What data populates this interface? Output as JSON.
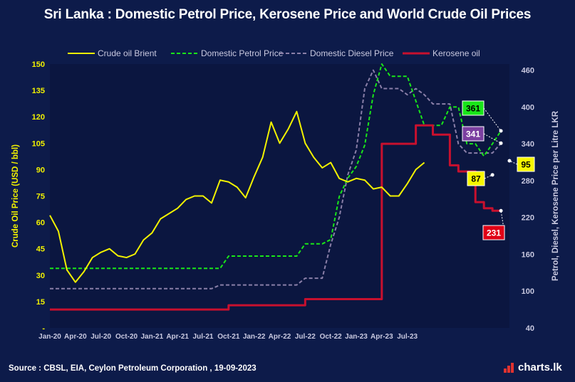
{
  "title": "Sri Lanka : Domestic Petrol Price, Kerosene Price and World Crude Oil Prices",
  "source": "Source : CBSL, EIA, Ceylon Petroleum Corporation , 19-09-2023",
  "brand": "charts.lk",
  "colors": {
    "background": "#0d1b4a",
    "plot_bg": "#0b1640",
    "crude": "#f2f200",
    "petrol": "#19e619",
    "diesel": "#8a7fa8",
    "kerosene": "#c8102e",
    "left_axis_text": "#f2f200",
    "right_axis_text": "#c9c9e0"
  },
  "chart_data": {
    "type": "line",
    "title": "Sri Lanka : Domestic Petrol Price, Kerosene Price and World Crude Oil Prices",
    "ylabel": "Crude Oil Price (USD / bbl)",
    "y2label": "Petrol, Diesel, Kerosene Price per Litre LKR",
    "ylim": [
      0,
      150
    ],
    "y2lim": [
      40,
      470
    ],
    "yticks": [
      "-",
      "15",
      "30",
      "45",
      "60",
      "75",
      "90",
      "105",
      "120",
      "135",
      "150"
    ],
    "y2ticks": [
      "40",
      "100",
      "160",
      "220",
      "280",
      "340",
      "400",
      "460"
    ],
    "xticks": [
      "Jan-20",
      "Apr-20",
      "Jul-20",
      "Oct-20",
      "Jan-21",
      "Apr-21",
      "Jul-21",
      "Oct-21",
      "Jan-22",
      "Apr-22",
      "Jul-22",
      "Oct-22",
      "Jan-23",
      "Apr-23",
      "Jul-23"
    ],
    "legend_position": "top",
    "grid": false,
    "series": [
      {
        "name": "Crude oil Brient",
        "axis": "left",
        "style": "solid",
        "points": [
          [
            0,
            64
          ],
          [
            1,
            55
          ],
          [
            2,
            33
          ],
          [
            3,
            26
          ],
          [
            4,
            32
          ],
          [
            5,
            40
          ],
          [
            6,
            43
          ],
          [
            7,
            45
          ],
          [
            8,
            41
          ],
          [
            9,
            40
          ],
          [
            10,
            42
          ],
          [
            11,
            50
          ],
          [
            12,
            54
          ],
          [
            13,
            62
          ],
          [
            14,
            65
          ],
          [
            15,
            68
          ],
          [
            16,
            73
          ],
          [
            17,
            75
          ],
          [
            18,
            75
          ],
          [
            19,
            71
          ],
          [
            20,
            84
          ],
          [
            21,
            83
          ],
          [
            22,
            80
          ],
          [
            23,
            74
          ],
          [
            24,
            86
          ],
          [
            25,
            97
          ],
          [
            26,
            117
          ],
          [
            27,
            105
          ],
          [
            28,
            113
          ],
          [
            29,
            123
          ],
          [
            30,
            105
          ],
          [
            31,
            97
          ],
          [
            32,
            91
          ],
          [
            33,
            94
          ],
          [
            34,
            85
          ],
          [
            35,
            83
          ],
          [
            36,
            85
          ],
          [
            37,
            84
          ],
          [
            38,
            79
          ],
          [
            39,
            80
          ],
          [
            40,
            75
          ],
          [
            41,
            75
          ],
          [
            42,
            82
          ],
          [
            43,
            90
          ],
          [
            44,
            94
          ]
        ]
      },
      {
        "name": "Domestic Petrol Price",
        "axis": "right",
        "style": "dashed",
        "points": [
          [
            0,
            137
          ],
          [
            11,
            137
          ],
          [
            12,
            137
          ],
          [
            20,
            137
          ],
          [
            21,
            157
          ],
          [
            22,
            157
          ],
          [
            29,
            157
          ],
          [
            30,
            177
          ],
          [
            31,
            177
          ],
          [
            32,
            177
          ],
          [
            33,
            184
          ],
          [
            34,
            254
          ],
          [
            35,
            284
          ],
          [
            36,
            303
          ],
          [
            37,
            338
          ],
          [
            38,
            420
          ],
          [
            39,
            470
          ],
          [
            40,
            450
          ],
          [
            41,
            450
          ],
          [
            42,
            450
          ],
          [
            43,
            410
          ],
          [
            44,
            370
          ],
          [
            45,
            370
          ],
          [
            46,
            370
          ],
          [
            47,
            400
          ],
          [
            48,
            400
          ],
          [
            49,
            340
          ],
          [
            50,
            340
          ],
          [
            51,
            320
          ],
          [
            52,
            340
          ],
          [
            53,
            361
          ]
        ]
      },
      {
        "name": "Domestic Diesel Price",
        "axis": "right",
        "style": "dashed",
        "points": [
          [
            0,
            104
          ],
          [
            19,
            104
          ],
          [
            20,
            110
          ],
          [
            29,
            110
          ],
          [
            30,
            121
          ],
          [
            31,
            121
          ],
          [
            32,
            121
          ],
          [
            33,
            176
          ],
          [
            34,
            220
          ],
          [
            35,
            289
          ],
          [
            36,
            330
          ],
          [
            37,
            430
          ],
          [
            38,
            460
          ],
          [
            39,
            430
          ],
          [
            40,
            430
          ],
          [
            41,
            430
          ],
          [
            42,
            420
          ],
          [
            43,
            430
          ],
          [
            44,
            420
          ],
          [
            45,
            405
          ],
          [
            46,
            405
          ],
          [
            47,
            405
          ],
          [
            48,
            340
          ],
          [
            49,
            325
          ],
          [
            50,
            325
          ],
          [
            51,
            325
          ],
          [
            52,
            325
          ],
          [
            53,
            341
          ]
        ]
      },
      {
        "name": "Kerosene oil",
        "axis": "right",
        "style": "solid",
        "points": [
          [
            0,
            70
          ],
          [
            11,
            70
          ],
          [
            20,
            70
          ],
          [
            21,
            77
          ],
          [
            22,
            77
          ],
          [
            29,
            77
          ],
          [
            30,
            87
          ],
          [
            31,
            87
          ],
          [
            38,
            87
          ],
          [
            39,
            340
          ],
          [
            40,
            340
          ],
          [
            41,
            340
          ],
          [
            42,
            340
          ],
          [
            43,
            370
          ],
          [
            44,
            370
          ],
          [
            45,
            355
          ],
          [
            46,
            355
          ],
          [
            47,
            305
          ],
          [
            48,
            295
          ],
          [
            49,
            295
          ],
          [
            50,
            245
          ],
          [
            51,
            235
          ],
          [
            52,
            231
          ],
          [
            53,
            231
          ]
        ]
      }
    ],
    "annotations": [
      {
        "series": "Domestic Petrol Price",
        "text": "361",
        "bg": "#19e619",
        "fg": "#000000"
      },
      {
        "series": "Domestic Diesel Price",
        "text": "341",
        "bg": "#7b3fa0",
        "fg": "#ffffff"
      },
      {
        "series": "Crude oil Brient",
        "text": "87",
        "bg": "#f7f700",
        "fg": "#000000"
      },
      {
        "series": "Crude oil Brient",
        "text": "95",
        "bg": "#f7f700",
        "fg": "#000000"
      },
      {
        "series": "Kerosene oil",
        "text": "231",
        "bg": "#e00016",
        "fg": "#ffffff"
      }
    ]
  }
}
